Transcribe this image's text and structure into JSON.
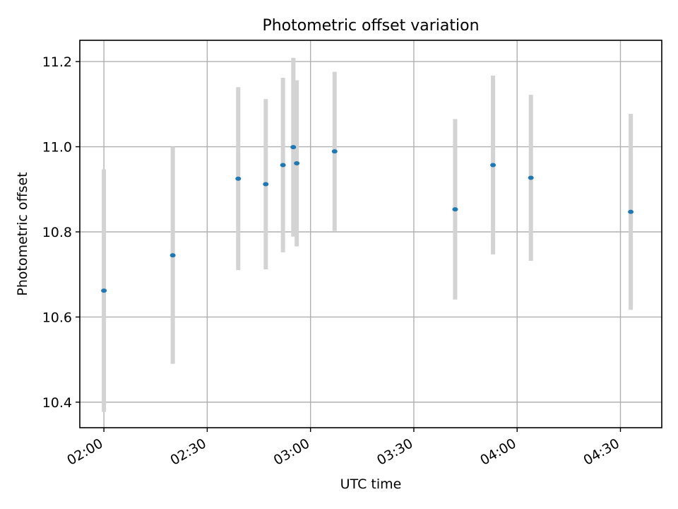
{
  "chart_data": {
    "type": "scatter",
    "title": "Photometric offset variation",
    "xlabel": "UTC time",
    "ylabel": "Photometric offset",
    "x_ticks": [
      "02:00",
      "02:30",
      "03:00",
      "03:30",
      "04:00",
      "04:30"
    ],
    "y_ticks": [
      "10.4",
      "10.6",
      "10.8",
      "11.0",
      "11.2"
    ],
    "xlim": [
      "01:53",
      "04:42"
    ],
    "ylim": [
      10.34,
      11.25
    ],
    "grid": true,
    "colors": {
      "point": "#1f77b4",
      "errorbar": "#d3d3d3"
    },
    "points": [
      {
        "x": "02:00",
        "y": 10.662,
        "err": 0.285
      },
      {
        "x": "02:20",
        "y": 10.745,
        "err": 0.255
      },
      {
        "x": "02:39",
        "y": 10.925,
        "err": 0.215
      },
      {
        "x": "02:47",
        "y": 10.912,
        "err": 0.2
      },
      {
        "x": "02:52",
        "y": 10.957,
        "err": 0.205
      },
      {
        "x": "02:55",
        "y": 10.999,
        "err": 0.21
      },
      {
        "x": "02:56",
        "y": 10.961,
        "err": 0.195
      },
      {
        "x": "03:07",
        "y": 10.989,
        "err": 0.187
      },
      {
        "x": "03:42",
        "y": 10.853,
        "err": 0.212
      },
      {
        "x": "03:53",
        "y": 10.957,
        "err": 0.21
      },
      {
        "x": "04:04",
        "y": 10.927,
        "err": 0.195
      },
      {
        "x": "04:33",
        "y": 10.847,
        "err": 0.23
      }
    ]
  }
}
